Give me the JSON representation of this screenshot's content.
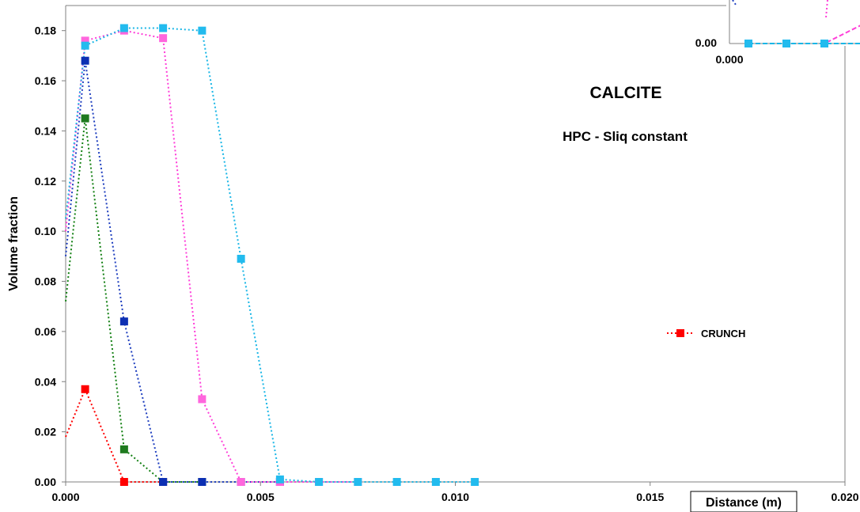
{
  "chart_data": {
    "type": "line",
    "title": "",
    "xlabel": "Distance (m)",
    "ylabel": "Volume fraction",
    "xlim": [
      0,
      0.02
    ],
    "ylim": [
      0,
      0.19
    ],
    "x_ticks": [
      "0.000",
      "0.005",
      "0.010",
      "0.015",
      "0.020"
    ],
    "y_ticks": [
      "0.00",
      "0.02",
      "0.04",
      "0.06",
      "0.08",
      "0.10",
      "0.12",
      "0.14",
      "0.16",
      "0.18"
    ],
    "grid": false,
    "annotations": [
      "CALCITE",
      "HPC - Sliq constant"
    ],
    "legend": {
      "placement": "right",
      "entries": [
        "CRUNCH"
      ]
    },
    "series": [
      {
        "name": "CRUNCH",
        "color": "#ff0000",
        "x": [
          0,
          0.0005,
          0.0015,
          0.0025
        ],
        "y": [
          0.018,
          0.037,
          0.0,
          0.0
        ]
      },
      {
        "color": "#138013",
        "marker_color": "#1f7a1f",
        "x": [
          0,
          0.0005,
          0.0015,
          0.0025,
          0.0035
        ],
        "y": [
          0.072,
          0.145,
          0.013,
          0.0,
          0.0
        ]
      },
      {
        "color": "#1f3fbf",
        "marker_color": "#0c2fb3",
        "x": [
          0,
          0.0005,
          0.0015,
          0.0025,
          0.0035,
          0.0045,
          0.0055
        ],
        "y": [
          0.09,
          0.168,
          0.064,
          0.0,
          0.0,
          0.0,
          0.0
        ]
      },
      {
        "color": "#ff3fd9",
        "marker_color": "#ff66dd",
        "x": [
          0,
          0.0005,
          0.0015,
          0.0025,
          0.0035,
          0.0045,
          0.0055,
          0.0065,
          0.0075
        ],
        "y": [
          0.1,
          0.176,
          0.18,
          0.177,
          0.033,
          0.0,
          0.0,
          0.0,
          0.0
        ]
      },
      {
        "color": "#19b6e6",
        "marker_color": "#22bbee",
        "x": [
          0,
          0.0005,
          0.0015,
          0.0025,
          0.0035,
          0.0045,
          0.0055,
          0.0065,
          0.0075,
          0.0085,
          0.0095,
          0.0105
        ],
        "y": [
          0.105,
          0.174,
          0.181,
          0.181,
          0.18,
          0.089,
          0.001,
          0.0,
          0.0,
          0.0,
          0.0,
          0.0
        ]
      }
    ],
    "inset": {
      "x_ticks": [
        "0.000"
      ],
      "y_ticks": [
        "0.00"
      ],
      "series": [
        {
          "color": "#ff3fd9",
          "marker_color": "#ff66dd",
          "x": [
            0,
            1,
            2,
            3
          ],
          "y": [
            0,
            0,
            0,
            0.6
          ]
        },
        {
          "color": "#19b6e6",
          "marker_color": "#22bbee",
          "x": [
            0,
            1,
            2,
            3,
            4
          ],
          "y": [
            0,
            0,
            0,
            0,
            0
          ]
        }
      ]
    }
  }
}
